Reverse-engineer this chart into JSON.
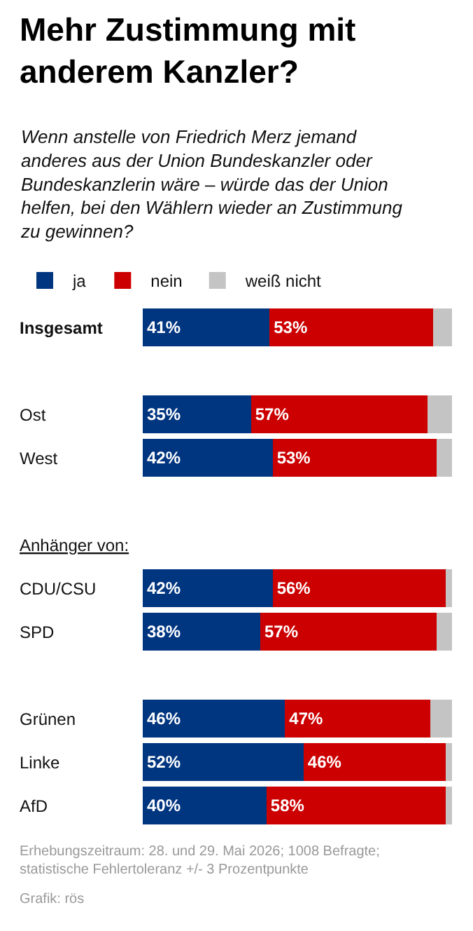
{
  "chart_data": {
    "type": "bar",
    "orientation": "horizontal",
    "stacked": true,
    "title": "Mehr Zustimmung mit\nanderem Kanzler?",
    "subtitle": "Wenn anstelle von Friedrich Merz jemand\nanderes aus der Union Bundeskanzler oder\nBundeskanzlerin wäre – würde das der Union\nhelfen, bei den Wählern wieder an Zustimmung\nzu gewinnen?",
    "categories": [
      "Insgesamt",
      null,
      "Ost",
      "West",
      null,
      null,
      "CDU/CSU",
      "SPD",
      null,
      "Grünen",
      "Linke",
      "AfD"
    ],
    "series": [
      {
        "name": "ja",
        "color": "#003580",
        "values": [
          41,
          null,
          35,
          42,
          null,
          null,
          42,
          38,
          null,
          46,
          52,
          40
        ],
        "value_labels": [
          "41%",
          null,
          "35%",
          "42%",
          null,
          null,
          "42%",
          "38%",
          null,
          "46%",
          "52%",
          "40%"
        ]
      },
      {
        "name": "nein",
        "color": "#cc0000",
        "values": [
          53,
          null,
          57,
          53,
          null,
          null,
          56,
          57,
          null,
          47,
          46,
          58
        ],
        "value_labels": [
          "53%",
          null,
          "57%",
          "53%",
          null,
          null,
          "56%",
          "57%",
          null,
          "47%",
          "46%",
          "58%"
        ]
      },
      {
        "name": "weiß nicht",
        "color": "#c4c4c4",
        "values": [
          6,
          null,
          8,
          5,
          null,
          null,
          2,
          5,
          null,
          7,
          2,
          2
        ]
      }
    ],
    "xlim": [
      0,
      100
    ],
    "tick_labels": false,
    "legend": "top left",
    "annotations": [
      "Anhänger von:",
      "Erhebungszeitraum: 28. und 29. Mai 2026; 1008 Befragte;\nstatistische Fehlertoleranz +/- 3 Prozentpunkte",
      "Grafik: rös"
    ]
  }
}
